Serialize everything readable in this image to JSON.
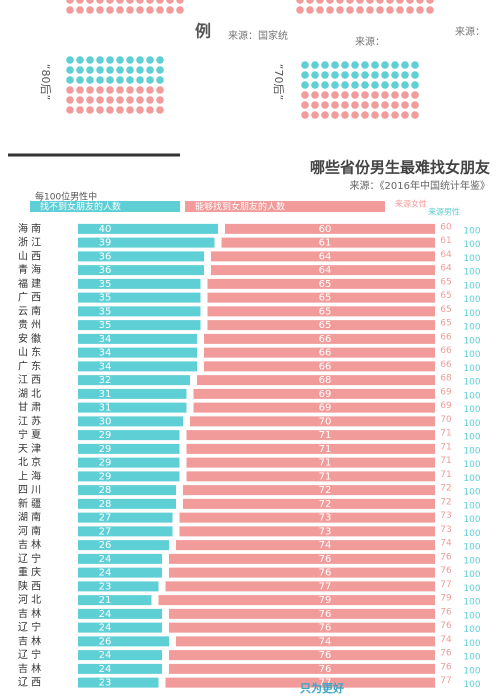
{
  "top": {
    "legend_mark": "例",
    "sources": [
      "来源：国家统",
      "来源：",
      "来源："
    ],
    "groups": [
      "“80后”",
      "“70后”"
    ]
  },
  "chart_data": {
    "type": "diverging-bar",
    "title": "哪些省份男生最难找女朋友",
    "subtitle": "来源：《2016年中国统计年鉴》",
    "note": "每100位男性中",
    "right_headers": [
      "来源女性",
      "来源男性"
    ],
    "total": 100,
    "categories": [
      "海 南",
      "浙 江",
      "山 西",
      "青 海",
      "福 建",
      "广 西",
      "云 南",
      "贵 州",
      "安 徽",
      "山 东",
      "广 东",
      "江 西",
      "湖 北",
      "甘 肃",
      "江 苏",
      "宁 夏",
      "天 津",
      "北 京",
      "上 海",
      "四 川",
      "新 疆",
      "湖 南",
      "河 南",
      "吉 林",
      "辽 宁",
      "重 庆",
      "陕 西",
      "河 北",
      "吉 林",
      "辽 宁",
      "吉 林",
      "辽 宁",
      "吉 林",
      "辽 西"
    ],
    "series": [
      {
        "name": "找不到女朋友的人数",
        "color": "#5fcfd6",
        "values": [
          40,
          39,
          36,
          36,
          35,
          35,
          35,
          35,
          34,
          34,
          34,
          32,
          31,
          31,
          30,
          29,
          29,
          29,
          29,
          28,
          28,
          27,
          27,
          26,
          24,
          24,
          23,
          21,
          24,
          24,
          26,
          24,
          24,
          23
        ]
      },
      {
        "name": "能够找到女朋友的人数",
        "color": "#f29b9b",
        "values": [
          60,
          61,
          64,
          64,
          65,
          65,
          65,
          65,
          66,
          66,
          66,
          68,
          69,
          69,
          70,
          71,
          71,
          71,
          71,
          72,
          72,
          73,
          73,
          74,
          76,
          76,
          77,
          79,
          76,
          76,
          74,
          76,
          76,
          77
        ]
      }
    ],
    "footer": "只为更好"
  }
}
